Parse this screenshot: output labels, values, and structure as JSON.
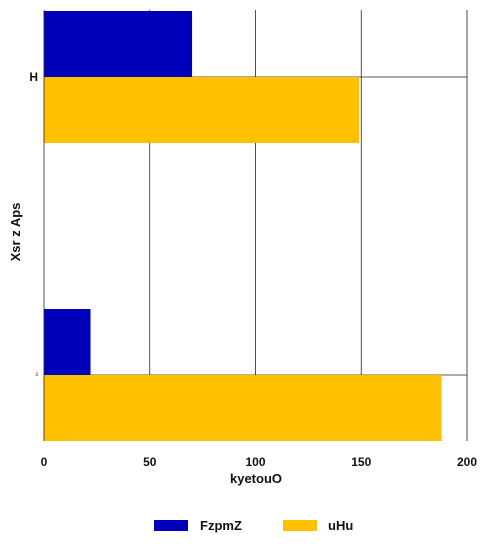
{
  "chart_data": {
    "type": "bar",
    "orientation": "horizontal",
    "categories": [
      "H",
      "ﾛ"
    ],
    "series": [
      {
        "name": "FzpmZ",
        "color": "#0000bb",
        "values": [
          70,
          22
        ]
      },
      {
        "name": "uHu",
        "color": "#ffc000",
        "values": [
          149,
          188
        ]
      }
    ],
    "xlabel": "kyetouO",
    "ylabel": "Xsr z Aps",
    "xlim": [
      0,
      200
    ],
    "xticks": [
      "0",
      "50",
      "100",
      "150",
      "200"
    ],
    "grid": true,
    "legend": "bottom"
  }
}
